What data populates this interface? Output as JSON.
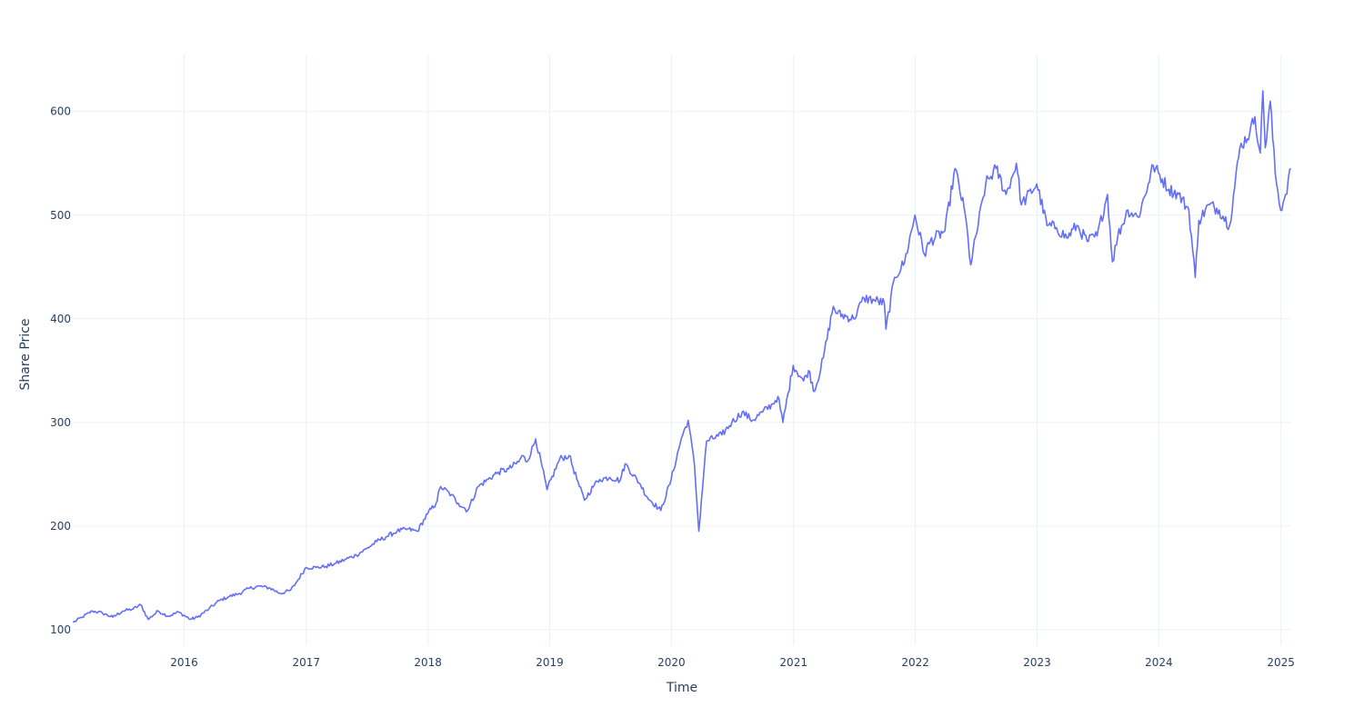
{
  "chart_data": {
    "type": "line",
    "title": "",
    "xlabel": "Time",
    "ylabel": "Share Price",
    "x_ticks": [
      "2016",
      "2017",
      "2018",
      "2019",
      "2020",
      "2021",
      "2022",
      "2023",
      "2024",
      "2025"
    ],
    "y_ticks": [
      100,
      200,
      300,
      400,
      500,
      600
    ],
    "xlim": [
      "2015-02-01",
      "2025-02-01"
    ],
    "ylim": [
      85,
      655
    ],
    "grid": true,
    "legend": "none",
    "colors": {
      "line": "#636efa",
      "grid": "#ebf0f8",
      "text": "#2a3f5f",
      "background": "#ffffff"
    },
    "series": [
      {
        "x": [
          "2015-02-02",
          "2015-03-01",
          "2015-04-01",
          "2015-05-01",
          "2015-06-01",
          "2015-07-01",
          "2015-08-01",
          "2015-08-24",
          "2015-09-15",
          "2015-10-15",
          "2015-11-15",
          "2015-12-15",
          "2016-01-20",
          "2016-02-10",
          "2016-03-15",
          "2016-04-15",
          "2016-05-15",
          "2016-06-15",
          "2016-07-15",
          "2016-08-15",
          "2016-09-15",
          "2016-10-15",
          "2016-11-15",
          "2016-12-01",
          "2016-12-31",
          "2017-01-31",
          "2017-02-28",
          "2017-03-31",
          "2017-04-30",
          "2017-05-31",
          "2017-06-30",
          "2017-07-31",
          "2017-08-31",
          "2017-09-30",
          "2017-10-31",
          "2017-11-30",
          "2017-12-31",
          "2018-01-25",
          "2018-02-08",
          "2018-03-12",
          "2018-04-02",
          "2018-04-30",
          "2018-05-31",
          "2018-06-30",
          "2018-07-31",
          "2018-08-31",
          "2018-09-30",
          "2018-10-10",
          "2018-10-25",
          "2018-11-20",
          "2018-12-24",
          "2019-01-31",
          "2019-02-28",
          "2019-03-31",
          "2019-04-15",
          "2019-05-15",
          "2019-05-31",
          "2019-06-30",
          "2019-07-31",
          "2019-08-15",
          "2019-09-30",
          "2019-10-20",
          "2019-11-30",
          "2019-12-31",
          "2020-01-31",
          "2020-02-20",
          "2020-03-10",
          "2020-03-23",
          "2020-04-15",
          "2020-05-31",
          "2020-06-30",
          "2020-07-31",
          "2020-08-31",
          "2020-09-30",
          "2020-10-31",
          "2020-11-15",
          "2020-11-30",
          "2020-12-31",
          "2021-01-31",
          "2021-02-15",
          "2021-03-05",
          "2021-03-31",
          "2021-04-30",
          "2021-05-12",
          "2021-06-30",
          "2021-07-31",
          "2021-08-31",
          "2021-09-30",
          "2021-10-05",
          "2021-10-31",
          "2021-11-30",
          "2021-12-31",
          "2022-01-28",
          "2022-02-15",
          "2022-03-31",
          "2022-04-30",
          "2022-05-31",
          "2022-06-16",
          "2022-07-31",
          "2022-08-31",
          "2022-09-30",
          "2022-10-31",
          "2022-11-15",
          "2022-12-31",
          "2023-01-31",
          "2023-02-28",
          "2023-03-31",
          "2023-04-30",
          "2023-05-31",
          "2023-06-30",
          "2023-07-31",
          "2023-08-15",
          "2023-08-31",
          "2023-09-30",
          "2023-10-31",
          "2023-11-30",
          "2023-12-15",
          "2024-01-31",
          "2024-02-29",
          "2024-03-31",
          "2024-04-19",
          "2024-04-30",
          "2024-05-31",
          "2024-06-30",
          "2024-07-31",
          "2024-08-31",
          "2024-09-30",
          "2024-10-15",
          "2024-10-31",
          "2024-11-08",
          "2024-11-15",
          "2024-11-30",
          "2024-12-15",
          "2024-12-31",
          "2025-01-15",
          "2025-01-31"
        ],
        "y": [
          107,
          112,
          118,
          116,
          112,
          118,
          120,
          124,
          110,
          118,
          113,
          117,
          110,
          112,
          120,
          128,
          132,
          135,
          140,
          142,
          140,
          135,
          138,
          145,
          160,
          160,
          161,
          164,
          168,
          172,
          178,
          185,
          190,
          195,
          197,
          195,
          212,
          222,
          238,
          230,
          222,
          215,
          238,
          245,
          252,
          255,
          262,
          268,
          262,
          284,
          235,
          265,
          268,
          238,
          225,
          240,
          245,
          247,
          244,
          260,
          240,
          228,
          215,
          245,
          285,
          302,
          258,
          195,
          282,
          288,
          300,
          310,
          302,
          310,
          318,
          325,
          300,
          355,
          340,
          350,
          330,
          362,
          412,
          405,
          400,
          420,
          418,
          415,
          390,
          440,
          455,
          500,
          462,
          475,
          485,
          545,
          500,
          452,
          530,
          545,
          520,
          550,
          510,
          530,
          490,
          488,
          478,
          490,
          475,
          480,
          520,
          455,
          480,
          505,
          498,
          530,
          548,
          525,
          520,
          505,
          440,
          495,
          510,
          505,
          490,
          565,
          580,
          595,
          560,
          620,
          565,
          610,
          540,
          505,
          520,
          545
        ]
      }
    ]
  }
}
